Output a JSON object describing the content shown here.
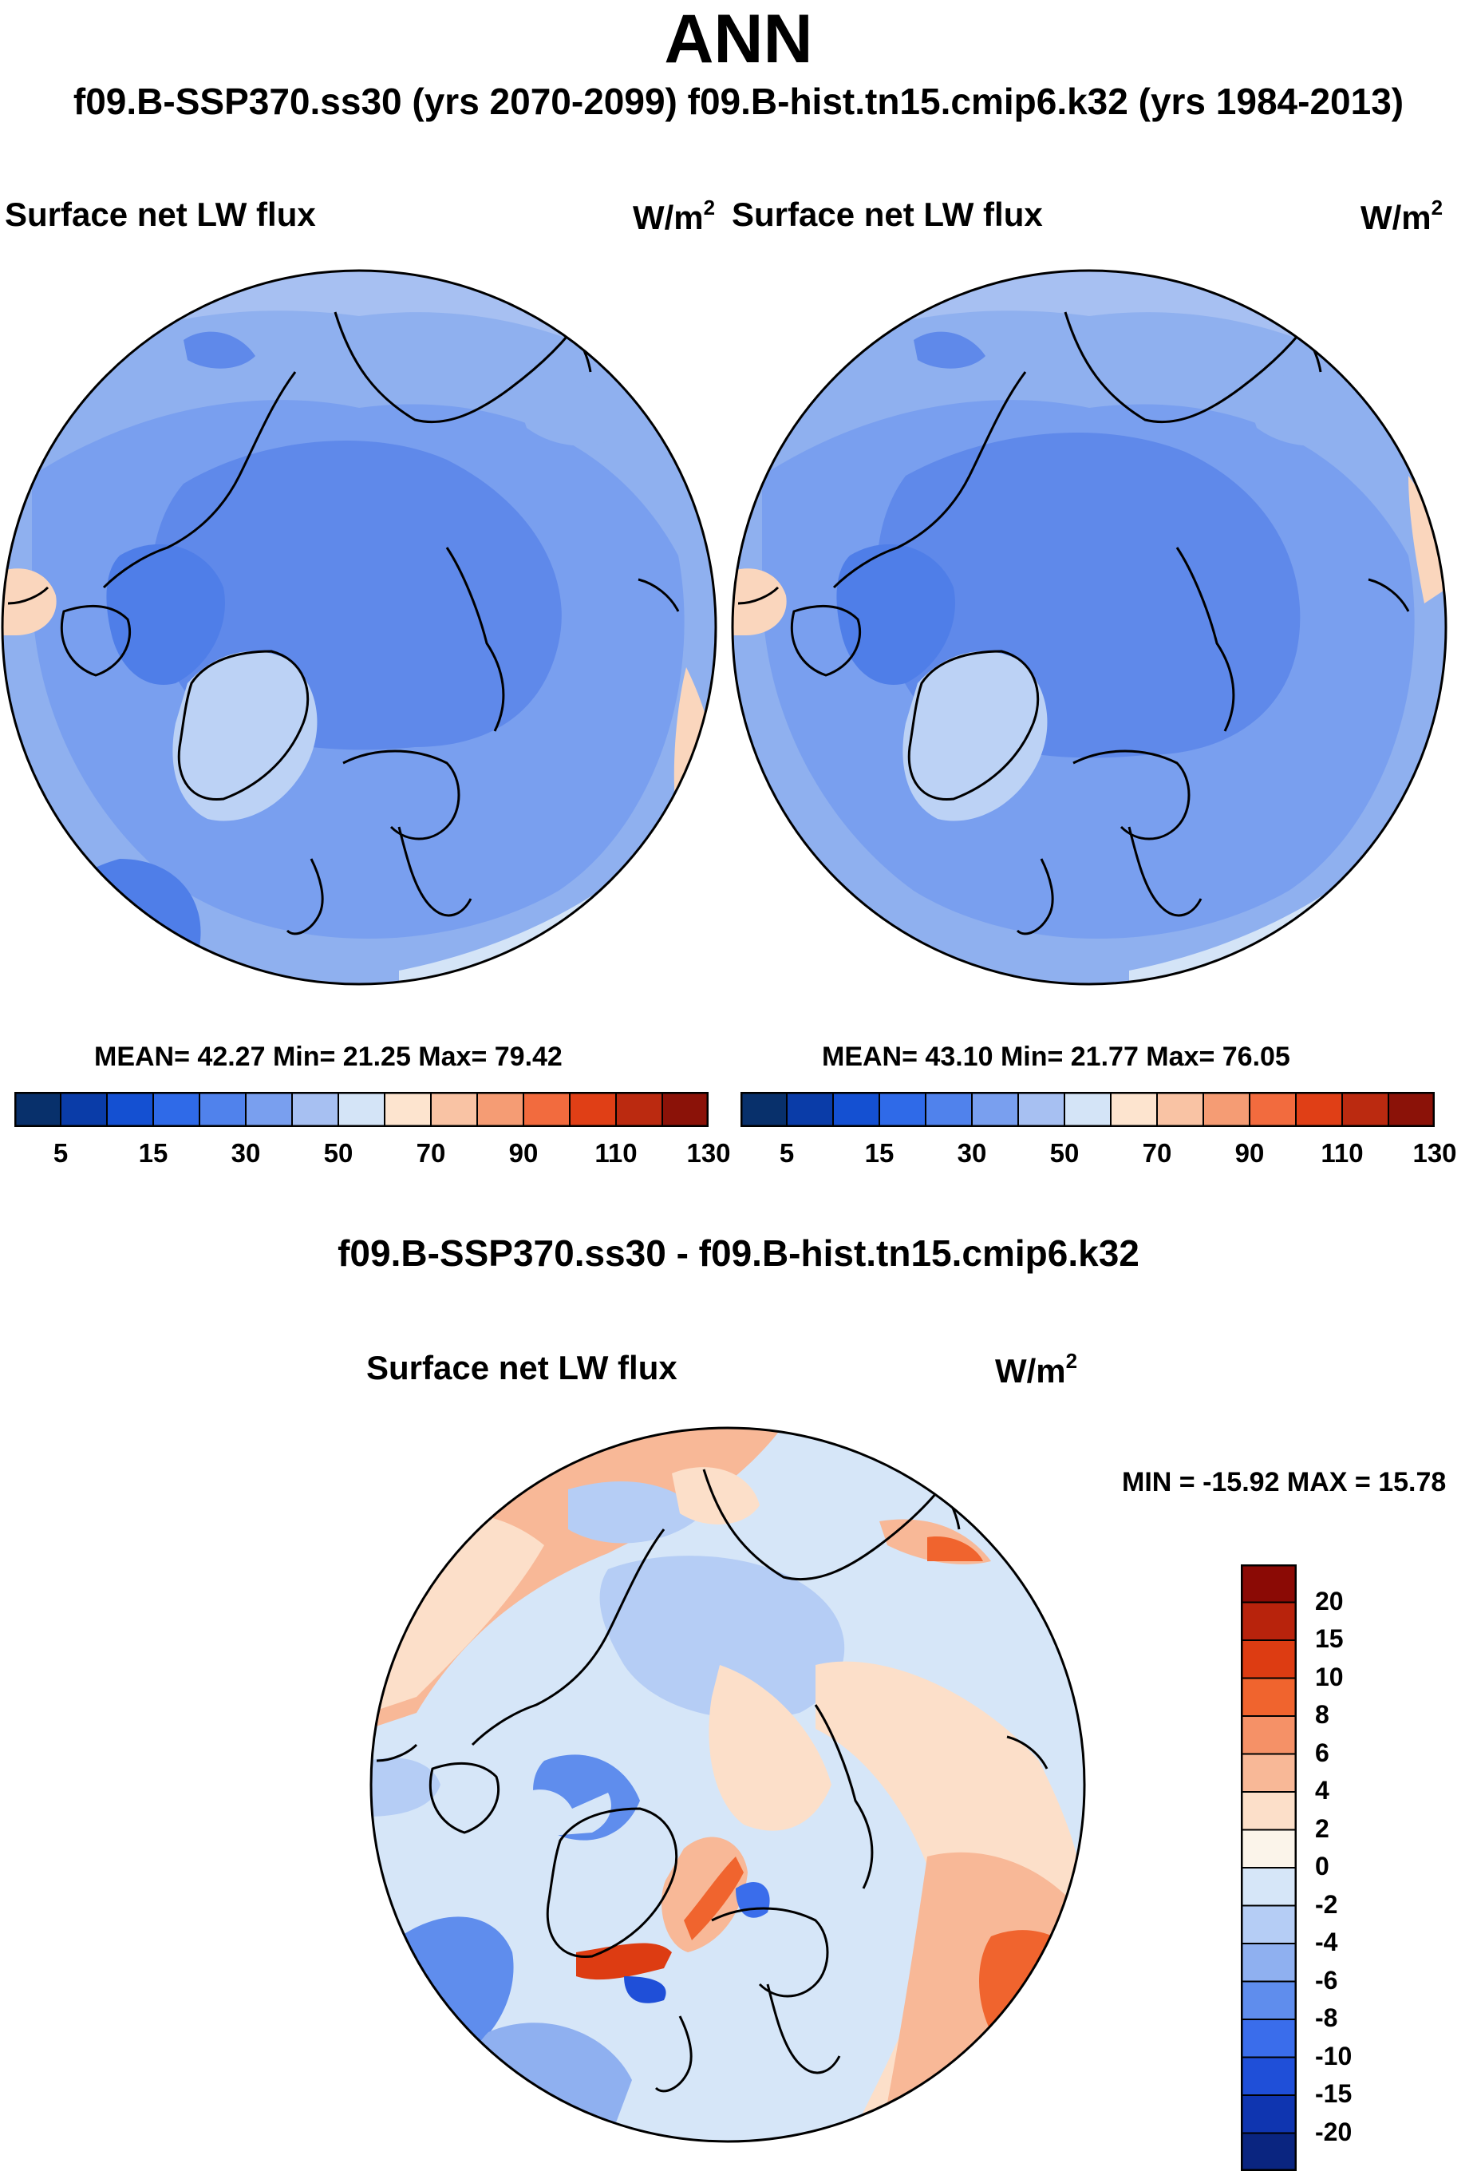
{
  "header": {
    "title": "ANN",
    "subtitle": "f09.B-SSP370.ss30 (yrs 2070-2099)  f09.B-hist.tn15.cmip6.k32 (yrs 1984-2013)"
  },
  "panels": [
    {
      "variable": "Surface net LW flux",
      "units": "W/m",
      "units_exp": "2",
      "stats": "MEAN=  42.27  Min=  21.25  Max=  79.42"
    },
    {
      "variable": "Surface net LW flux",
      "units": "W/m",
      "units_exp": "2",
      "stats": "MEAN=  43.10  Min=  21.77  Max=  76.05"
    }
  ],
  "colorbar_abs": {
    "ticks": [
      "5",
      "15",
      "30",
      "50",
      "70",
      "90",
      "110",
      "130"
    ],
    "colors": [
      "#08306b",
      "#0a3ca8",
      "#1450d2",
      "#2f6ae8",
      "#5082ec",
      "#799fef",
      "#a7c0f2",
      "#d4e4f7",
      "#fde4cf",
      "#f9c3a4",
      "#f59c74",
      "#f26b3e",
      "#e03f16",
      "#bb2a10",
      "#8b1208"
    ]
  },
  "difference": {
    "title": "f09.B-SSP370.ss30 - f09.B-hist.tn15.cmip6.k32",
    "variable": "Surface net LW flux",
    "units": "W/m",
    "units_exp": "2",
    "stats": "MIN = -15.92 MAX =  15.78",
    "colorbar": {
      "ticks": [
        "20",
        "15",
        "10",
        "8",
        "6",
        "4",
        "2",
        "0",
        "-2",
        "-4",
        "-6",
        "-8",
        "-10",
        "-15",
        "-20"
      ],
      "colors": [
        "#8b0a05",
        "#b8230c",
        "#dd3c12",
        "#f0642e",
        "#f59167",
        "#f8b897",
        "#fcdfc9",
        "#fbf4ea",
        "#d6e6f8",
        "#b5cdf5",
        "#8fb0f0",
        "#5f8ded",
        "#3a6deb",
        "#1f4fd8",
        "#0f35b0",
        "#0a2580"
      ]
    }
  },
  "colors": {
    "ocean_arctic": "#5f89ea",
    "ocean_mid": "#8fb0ef",
    "ocean_light": "#bcd2f5",
    "warm": "#fad6bd"
  }
}
